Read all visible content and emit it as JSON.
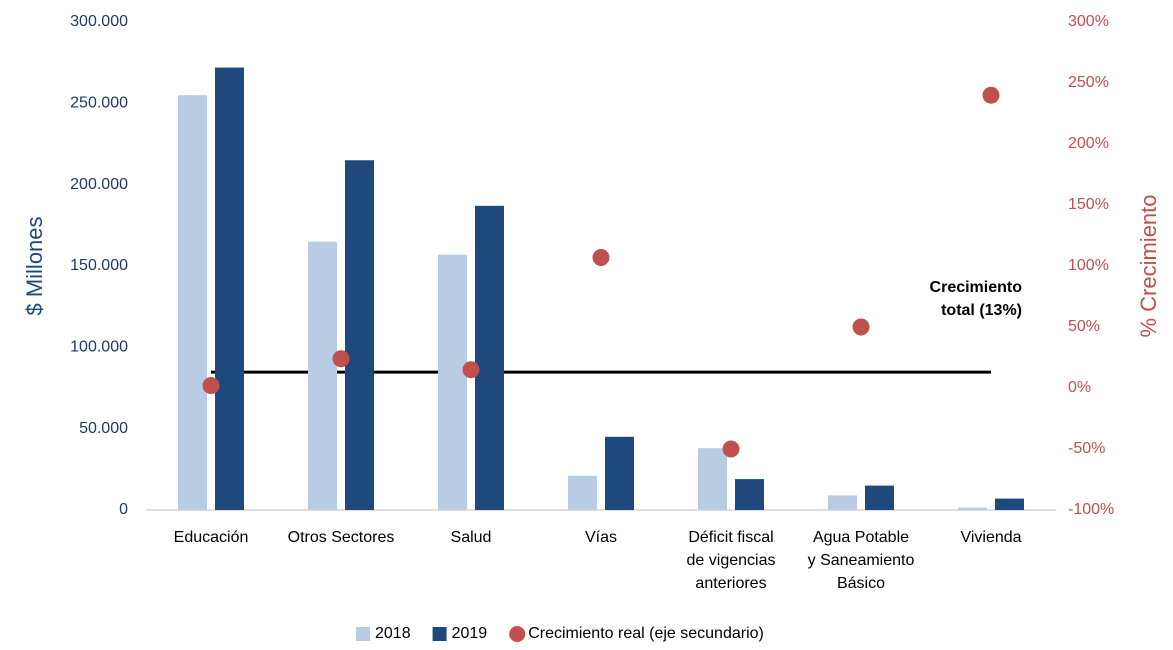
{
  "chart_data": {
    "type": "bar",
    "categories": [
      [
        "Educación"
      ],
      [
        "Otros Sectores"
      ],
      [
        "Salud"
      ],
      [
        "Vías"
      ],
      [
        "Déficit fiscal",
        "de vigencias",
        "anteriores"
      ],
      [
        "Agua Potable",
        "y Saneamiento",
        "Básico"
      ],
      [
        "Vivienda"
      ]
    ],
    "series": [
      {
        "name": "2018",
        "color": "#b8cce4",
        "values": [
          255000,
          165000,
          157000,
          21000,
          38000,
          9000,
          1500
        ]
      },
      {
        "name": "2019",
        "color": "#1f497d",
        "values": [
          272000,
          215000,
          187000,
          45000,
          19000,
          15000,
          7000
        ]
      },
      {
        "name": "Crecimiento real (eje secundario)",
        "color": "#c0504d",
        "type": "scatter",
        "axis": "y2",
        "values": [
          2,
          24,
          15,
          107,
          -50,
          50,
          240
        ]
      }
    ],
    "ylabel": "$ Millones",
    "y2label": "% Crecimiento",
    "ylim": [
      0,
      300000
    ],
    "yticks": [
      {
        "value": 0,
        "label": "0"
      },
      {
        "value": 50000,
        "label": "50.000"
      },
      {
        "value": 100000,
        "label": "100.000"
      },
      {
        "value": 150000,
        "label": "150.000"
      },
      {
        "value": 200000,
        "label": "200.000"
      },
      {
        "value": 250000,
        "label": "250.000"
      },
      {
        "value": 300000,
        "label": "300.000"
      }
    ],
    "y2lim": [
      -100,
      300
    ],
    "y2ticks": [
      {
        "value": -100,
        "label": "-100%"
      },
      {
        "value": -50,
        "label": "-50%"
      },
      {
        "value": 0,
        "label": "0%"
      },
      {
        "value": 50,
        "label": "50%"
      },
      {
        "value": 100,
        "label": "100%"
      },
      {
        "value": 150,
        "label": "150%"
      },
      {
        "value": 200,
        "label": "200%"
      },
      {
        "value": 250,
        "label": "250%"
      },
      {
        "value": 300,
        "label": "300%"
      }
    ],
    "annotation": {
      "lines": [
        "Crecimiento",
        "total (13%)"
      ],
      "value": 13
    },
    "legend": "bottom"
  }
}
